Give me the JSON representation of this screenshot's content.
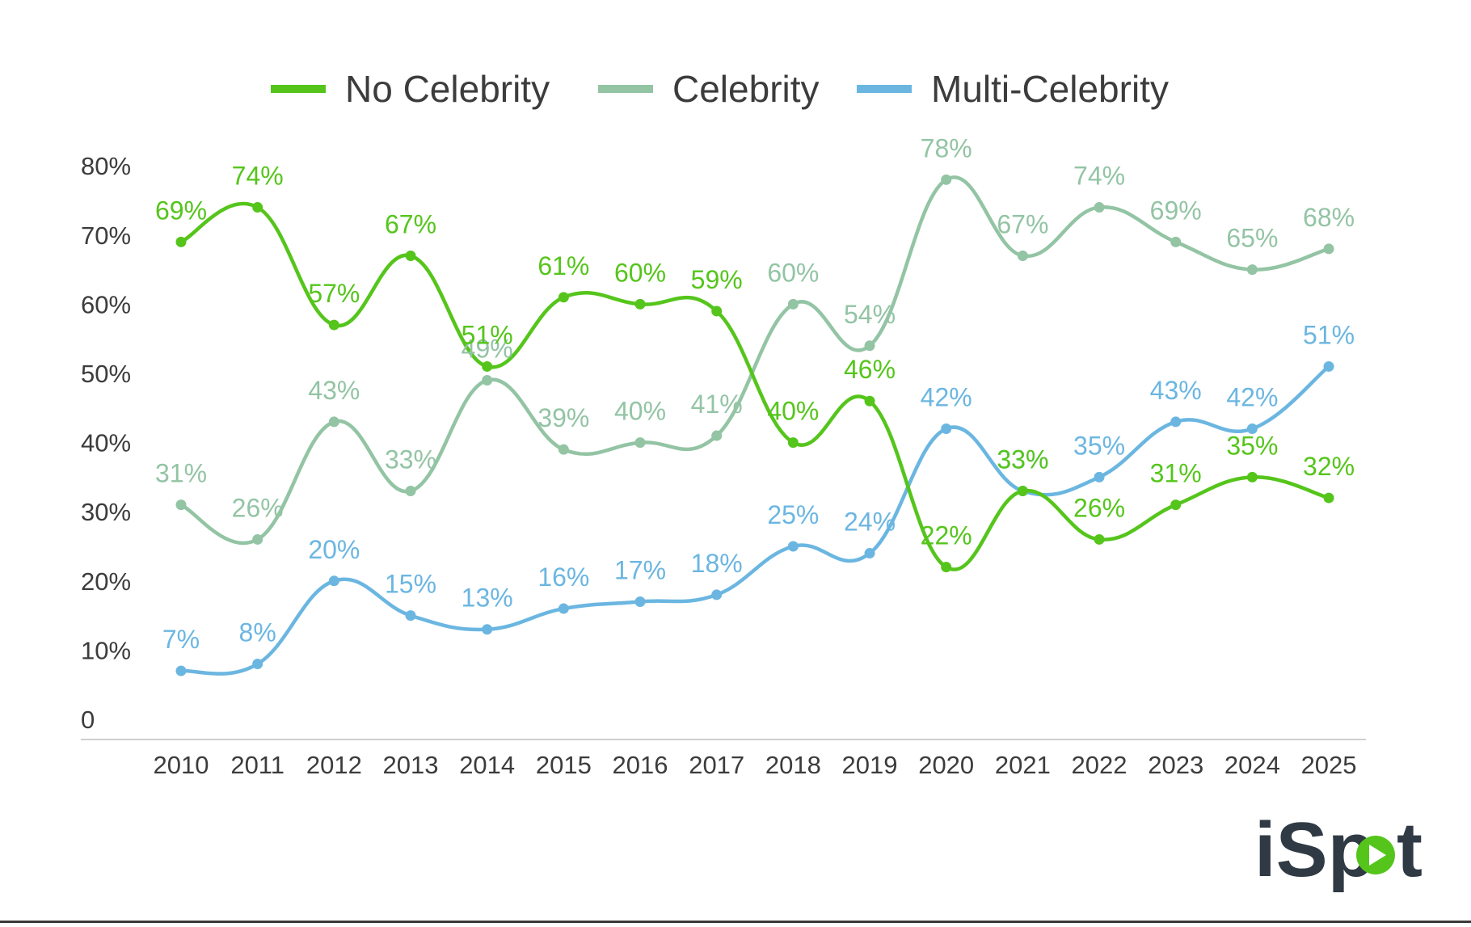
{
  "chart_data": {
    "type": "line",
    "title": "",
    "xlabel": "",
    "ylabel": "",
    "x": [
      "2010",
      "2011",
      "2012",
      "2013",
      "2014",
      "2015",
      "2016",
      "2017",
      "2018",
      "2019",
      "2020",
      "2021",
      "2022",
      "2023",
      "2024",
      "2025"
    ],
    "y_ticks": [
      "0",
      "10%",
      "20%",
      "30%",
      "40%",
      "50%",
      "60%",
      "70%",
      "80%"
    ],
    "ylim": [
      0,
      80
    ],
    "legend_position": "top",
    "grid": false,
    "series": [
      {
        "name": "No Celebrity",
        "color": "#55c51b",
        "values": [
          69,
          74,
          57,
          67,
          51,
          61,
          60,
          59,
          40,
          46,
          22,
          33,
          26,
          31,
          35,
          32
        ],
        "labels": [
          "69%",
          "74%",
          "57%",
          "67%",
          "51%",
          "61%",
          "60%",
          "59%",
          "40%",
          "46%",
          "22%",
          "33%",
          "26%",
          "31%",
          "35%",
          "32%"
        ]
      },
      {
        "name": "Celebrity",
        "color": "#93c4a4",
        "values": [
          31,
          26,
          43,
          33,
          49,
          39,
          40,
          41,
          60,
          54,
          78,
          67,
          74,
          69,
          65,
          68
        ],
        "labels": [
          "31%",
          "26%",
          "43%",
          "33%",
          "49%",
          "39%",
          "40%",
          "41%",
          "60%",
          "54%",
          "78%",
          "67%",
          "74%",
          "69%",
          "65%",
          "68%"
        ]
      },
      {
        "name": "Multi-Celebrity",
        "color": "#6bb6e1",
        "values": [
          7,
          8,
          20,
          15,
          13,
          16,
          17,
          18,
          25,
          24,
          42,
          33,
          35,
          43,
          42,
          51
        ],
        "labels": [
          "7%",
          "8%",
          "20%",
          "15%",
          "13%",
          "16%",
          "17%",
          "18%",
          "25%",
          "24%",
          "42%",
          "33%",
          "35%",
          "43%",
          "42%",
          "51%"
        ]
      }
    ]
  },
  "brand": {
    "logo_text": "iSpot",
    "logo_letters": [
      "iSp",
      "t"
    ],
    "logo_accent": "#55c51b",
    "logo_color": "#2f3a44"
  }
}
